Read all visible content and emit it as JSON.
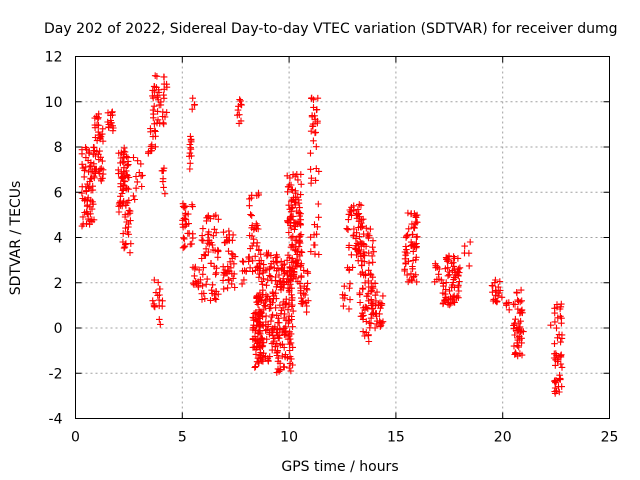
{
  "chart_data": {
    "type": "scatter",
    "title": "Day 202 of 2022, Sidereal Day-to-day VTEC variation (SDTVAR) for receiver dumg",
    "xlabel": "GPS time / hours",
    "ylabel": "SDTVAR / TECUs",
    "xlim": [
      0,
      25
    ],
    "ylim": [
      -4,
      12
    ],
    "xticks": [
      0,
      5,
      10,
      15,
      20,
      25
    ],
    "yticks": [
      -4,
      -2,
      0,
      2,
      4,
      6,
      8,
      10,
      12
    ],
    "xtick_labels": [
      "0",
      "5",
      "10",
      "15",
      "20",
      "25"
    ],
    "ytick_labels": [
      "-4",
      "-2",
      "0",
      "2",
      "4",
      "6",
      "8",
      "10",
      "12"
    ],
    "grid": true,
    "marker": "+",
    "color": "#ff0000",
    "clusters": [
      {
        "x": [
          0.3,
          0.9
        ],
        "y": [
          4.5,
          8.0
        ],
        "n": 70
      },
      {
        "x": [
          0.9,
          1.3
        ],
        "y": [
          6.5,
          9.5
        ],
        "n": 40
      },
      {
        "x": [
          1.5,
          1.8
        ],
        "y": [
          8.7,
          9.6
        ],
        "n": 15
      },
      {
        "x": [
          2.0,
          2.5
        ],
        "y": [
          5.0,
          8.0
        ],
        "n": 60
      },
      {
        "x": [
          2.2,
          2.6
        ],
        "y": [
          3.3,
          5.5
        ],
        "n": 20
      },
      {
        "x": [
          2.7,
          3.3
        ],
        "y": [
          5.0,
          7.7
        ],
        "n": 12
      },
      {
        "x": [
          3.4,
          3.6
        ],
        "y": [
          7.7,
          8.1
        ],
        "n": 6
      },
      {
        "x": [
          3.5,
          3.8
        ],
        "y": [
          8.0,
          9.0
        ],
        "n": 8
      },
      {
        "x": [
          3.6,
          4.3
        ],
        "y": [
          9.0,
          11.2
        ],
        "n": 40
      },
      {
        "x": [
          3.6,
          4.0
        ],
        "y": [
          0.9,
          2.2
        ],
        "n": 12
      },
      {
        "x": [
          3.9,
          4.1
        ],
        "y": [
          -0.1,
          1.5
        ],
        "n": 6
      },
      {
        "x": [
          4.0,
          4.2
        ],
        "y": [
          5.5,
          7.2
        ],
        "n": 8
      },
      {
        "x": [
          5.0,
          5.5
        ],
        "y": [
          3.5,
          5.5
        ],
        "n": 30
      },
      {
        "x": [
          5.3,
          5.6
        ],
        "y": [
          7.0,
          8.5
        ],
        "n": 12
      },
      {
        "x": [
          5.4,
          5.6
        ],
        "y": [
          9.5,
          10.2
        ],
        "n": 4
      },
      {
        "x": [
          5.5,
          6.0
        ],
        "y": [
          1.7,
          2.7
        ],
        "n": 15
      },
      {
        "x": [
          5.9,
          6.7
        ],
        "y": [
          1.2,
          5.0
        ],
        "n": 60
      },
      {
        "x": [
          6.9,
          7.5
        ],
        "y": [
          1.7,
          4.3
        ],
        "n": 40
      },
      {
        "x": [
          7.8,
          8.0
        ],
        "y": [
          1.8,
          3.0
        ],
        "n": 8
      },
      {
        "x": [
          7.5,
          7.8
        ],
        "y": [
          9.0,
          10.2
        ],
        "n": 10
      },
      {
        "x": [
          8.1,
          8.6
        ],
        "y": [
          2.5,
          6.0
        ],
        "n": 40
      },
      {
        "x": [
          8.3,
          8.7
        ],
        "y": [
          -1.8,
          1.5
        ],
        "n": 60
      },
      {
        "x": [
          8.5,
          9.5
        ],
        "y": [
          -1.5,
          3.5
        ],
        "n": 140
      },
      {
        "x": [
          9.4,
          10.2
        ],
        "y": [
          -2.0,
          3.0
        ],
        "n": 120
      },
      {
        "x": [
          9.9,
          10.6
        ],
        "y": [
          2.0,
          6.8
        ],
        "n": 120
      },
      {
        "x": [
          10.5,
          10.9
        ],
        "y": [
          0.7,
          3.0
        ],
        "n": 25
      },
      {
        "x": [
          11.0,
          11.4
        ],
        "y": [
          3.0,
          10.2
        ],
        "n": 40
      },
      {
        "x": [
          12.5,
          12.9
        ],
        "y": [
          0.8,
          2.0
        ],
        "n": 10
      },
      {
        "x": [
          12.7,
          13.5
        ],
        "y": [
          2.5,
          5.5
        ],
        "n": 60
      },
      {
        "x": [
          13.3,
          14.0
        ],
        "y": [
          -0.6,
          4.5
        ],
        "n": 80
      },
      {
        "x": [
          14.0,
          14.4
        ],
        "y": [
          0.0,
          2.0
        ],
        "n": 25
      },
      {
        "x": [
          15.4,
          16.0
        ],
        "y": [
          2.0,
          5.1
        ],
        "n": 60
      },
      {
        "x": [
          16.8,
          17.2
        ],
        "y": [
          2.0,
          3.0
        ],
        "n": 10
      },
      {
        "x": [
          17.2,
          18.0
        ],
        "y": [
          1.0,
          3.2
        ],
        "n": 70
      },
      {
        "x": [
          18.2,
          18.5
        ],
        "y": [
          2.7,
          4.2
        ],
        "n": 5
      },
      {
        "x": [
          19.5,
          20.0
        ],
        "y": [
          1.0,
          2.2
        ],
        "n": 20
      },
      {
        "x": [
          20.1,
          20.4
        ],
        "y": [
          0.8,
          1.2
        ],
        "n": 5
      },
      {
        "x": [
          20.5,
          21.0
        ],
        "y": [
          -1.3,
          1.8
        ],
        "n": 50
      },
      {
        "x": [
          22.2,
          22.8
        ],
        "y": [
          -0.7,
          1.2
        ],
        "n": 20
      },
      {
        "x": [
          22.4,
          22.8
        ],
        "y": [
          -3.0,
          -1.0
        ],
        "n": 30
      }
    ]
  }
}
